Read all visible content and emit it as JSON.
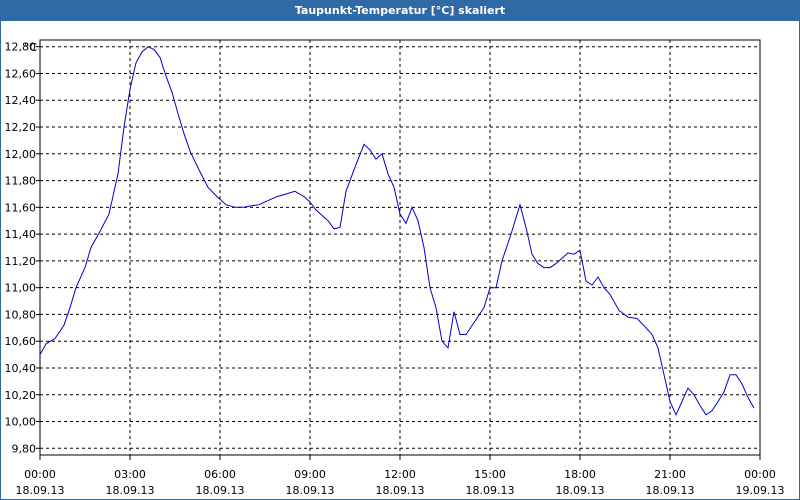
{
  "window": {
    "title": "Taupunkt-Temperatur [°C] skaliert"
  },
  "chart_data": {
    "type": "line",
    "title": "Taupunkt-Temperatur [°C] skaliert",
    "y_unit": "°C",
    "ylim": [
      9.75,
      12.85
    ],
    "y_ticks": [
      "12,80",
      "12,60",
      "12,40",
      "12,20",
      "12,00",
      "11,80",
      "11,60",
      "11,40",
      "11,20",
      "11,00",
      "10,80",
      "10,60",
      "10,40",
      "10,20",
      "10,00",
      "9,80"
    ],
    "x_ticks": [
      {
        "time": "00:00",
        "date": "18.09.13"
      },
      {
        "time": "03:00",
        "date": "18.09.13"
      },
      {
        "time": "06:00",
        "date": "18.09.13"
      },
      {
        "time": "09:00",
        "date": "18.09.13"
      },
      {
        "time": "12:00",
        "date": "18.09.13"
      },
      {
        "time": "15:00",
        "date": "18.09.13"
      },
      {
        "time": "18:00",
        "date": "18.09.13"
      },
      {
        "time": "21:00",
        "date": "18.09.13"
      },
      {
        "time": "00:00",
        "date": "19.09.13"
      }
    ],
    "grid": true,
    "line_color": "#0000cc",
    "series": [
      {
        "x_hours": [
          0,
          0.2,
          0.5,
          0.8,
          1.0,
          1.2,
          1.5,
          1.7,
          2.0,
          2.3,
          2.6,
          2.8,
          3.0,
          3.2,
          3.4,
          3.6,
          3.8,
          4.0,
          4.2,
          4.4,
          4.6,
          4.8,
          5.0,
          5.3,
          5.6,
          5.9,
          6.2,
          6.5,
          6.8,
          7.0,
          7.3,
          7.6,
          7.9,
          8.2,
          8.5,
          8.8,
          9.0,
          9.2,
          9.4,
          9.6,
          9.8,
          10.0,
          10.2,
          10.5,
          10.8,
          11.0,
          11.2,
          11.4,
          11.6,
          11.8,
          12.0,
          12.2,
          12.4,
          12.6,
          12.8,
          13.0,
          13.2,
          13.4,
          13.6,
          13.8,
          14.0,
          14.2,
          14.5,
          14.8,
          15.0,
          15.2,
          15.4,
          15.7,
          16.0,
          16.2,
          16.4,
          16.6,
          16.8,
          17.0,
          17.2,
          17.4,
          17.6,
          17.8,
          18.0,
          18.2,
          18.4,
          18.6,
          18.8,
          19.0,
          19.3,
          19.6,
          19.9,
          20.2,
          20.4,
          20.6,
          20.8,
          21.0,
          21.2,
          21.4,
          21.6,
          21.8,
          22.0,
          22.2,
          22.4,
          22.6,
          22.8,
          23.0,
          23.2,
          23.4,
          23.6,
          23.8
        ],
        "values": [
          10.5,
          10.58,
          10.62,
          10.72,
          10.85,
          11.0,
          11.15,
          11.3,
          11.42,
          11.55,
          11.85,
          12.2,
          12.48,
          12.68,
          12.76,
          12.8,
          12.78,
          12.72,
          12.58,
          12.46,
          12.3,
          12.15,
          12.02,
          11.88,
          11.75,
          11.68,
          11.62,
          11.6,
          11.6,
          11.61,
          11.62,
          11.65,
          11.68,
          11.7,
          11.72,
          11.68,
          11.64,
          11.58,
          11.54,
          11.5,
          11.44,
          11.45,
          11.72,
          11.9,
          12.07,
          12.03,
          11.96,
          12.0,
          11.85,
          11.75,
          11.55,
          11.48,
          11.6,
          11.5,
          11.3,
          11.0,
          10.85,
          10.6,
          10.55,
          10.82,
          10.65,
          10.65,
          10.75,
          10.85,
          11.0,
          11.0,
          11.2,
          11.4,
          11.62,
          11.45,
          11.25,
          11.18,
          11.15,
          11.15,
          11.18,
          11.22,
          11.26,
          11.25,
          11.28,
          11.05,
          11.02,
          11.08,
          11.0,
          10.95,
          10.83,
          10.78,
          10.77,
          10.7,
          10.65,
          10.55,
          10.35,
          10.15,
          10.05,
          10.15,
          10.25,
          10.2,
          10.12,
          10.05,
          10.08,
          10.15,
          10.22,
          10.35,
          10.35,
          10.28,
          10.18,
          10.1
        ]
      }
    ]
  }
}
